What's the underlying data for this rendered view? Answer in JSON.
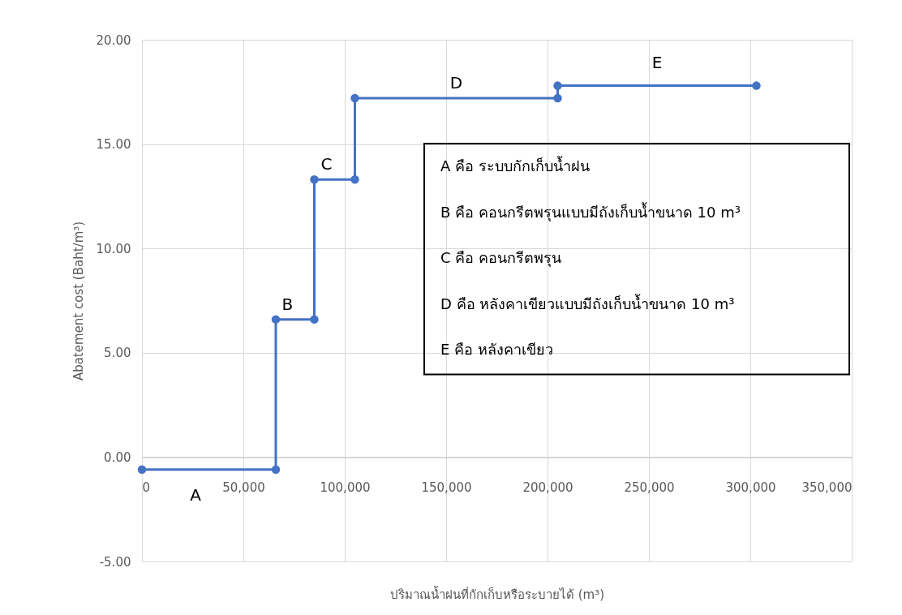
{
  "chart_data": {
    "type": "line",
    "xlabel": "ปริมาณน้ำฝนที่กักเก็บหรือระบายได้ (m³)",
    "ylabel": "Abatement cost (Baht/m³)",
    "x": [
      0,
      66000,
      66000,
      85000,
      85000,
      105000,
      105000,
      205000,
      205000,
      303000
    ],
    "series": [
      {
        "color": "#4472c4",
        "values": [
          -0.6,
          -0.6,
          6.6,
          6.6,
          13.3,
          13.3,
          17.2,
          17.2,
          17.8,
          17.8
        ]
      }
    ],
    "xlim": [
      0,
      350000
    ],
    "xticks": [
      0,
      {
        "value": 50000,
        "label": "50,000"
      },
      {
        "value": 100000,
        "label": "100,000"
      },
      {
        "value": 150000,
        "label": "150,000"
      },
      {
        "value": 200000,
        "label": "200,000"
      },
      {
        "value": 250000,
        "label": "250,000"
      },
      {
        "value": 300000,
        "label": "300,000"
      },
      {
        "value": 350000,
        "label": "350,000"
      }
    ],
    "ylim": [
      -5,
      20
    ],
    "yticks": [
      {
        "value": -5,
        "label": "-5.00"
      },
      {
        "value": 0,
        "label": "0.00"
      },
      {
        "value": 5,
        "label": "5.00"
      },
      {
        "value": 10,
        "label": "10.00"
      },
      {
        "value": 15,
        "label": "15.00"
      },
      {
        "value": 20,
        "label": "20.00"
      }
    ],
    "grid": true,
    "marker": "circle",
    "line_style": "solid",
    "annotations": [
      "A",
      "B",
      "C",
      "D",
      "E",
      "A คือ ระบบกักเก็บน้ำฝน",
      "B คือ คอนกรีตพรุนแบบมีถังเก็บน้ำขนาด 10 m³",
      "C คือ คอนกรีตพรุน",
      "D คือ หลังคาเขียวแบบมีถังเก็บน้ำขนาด 10 m³",
      "E คือ หลังคาเขียว"
    ]
  }
}
